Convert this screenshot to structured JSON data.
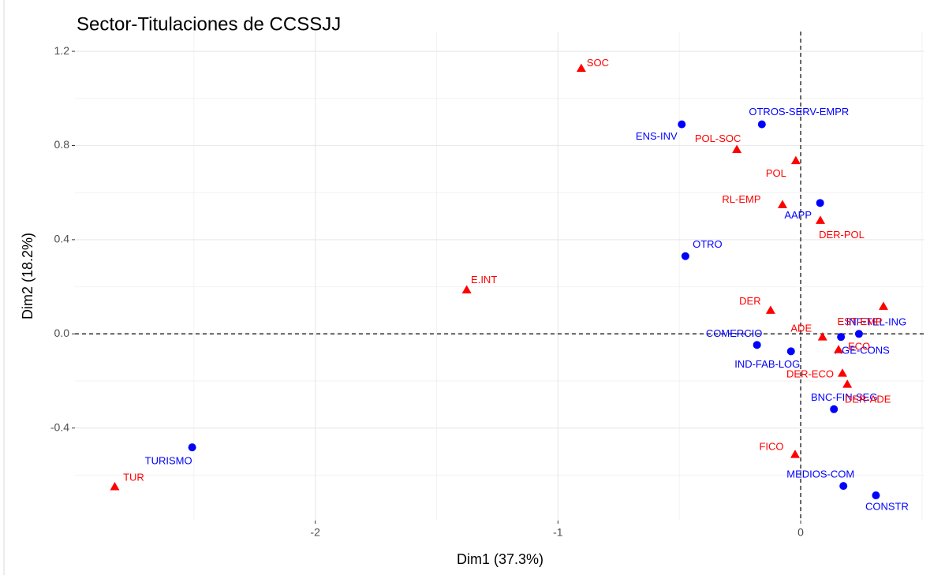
{
  "chart_data": {
    "type": "scatter",
    "title": "Sector-Titulaciones de CCSSJJ",
    "x_label": "Dim1 (37.3%)",
    "y_label": "Dim2 (18.2%)",
    "xlim": [
      -2.99,
      0.51
    ],
    "ylim": [
      -0.793,
      1.284
    ],
    "xticks": [
      -2,
      -1,
      0
    ],
    "yticks": [
      -0.4,
      {
        "value": 0,
        "label": "0.0"
      },
      0.4,
      0.8,
      1.2
    ],
    "grid": true,
    "series": [
      {
        "color": "#0000ff",
        "marker": "circle",
        "labels": [
          "ENS-INV",
          "OTROS-SERV-EMPR",
          "AAPP",
          "OTRO",
          "COMERCIO",
          "IND-FAB-LOG",
          "AGE-CONS",
          "INF-TEL-ING",
          "BNC-FIN-SEG",
          "MEDIOS-COM",
          "CONSTR",
          "TURISMO"
        ],
        "x": [
          -0.49,
          -0.16,
          0.08,
          -0.475,
          -0.18,
          -0.04,
          0.166,
          0.24,
          0.137,
          0.176,
          0.31,
          -2.507
        ],
        "values": [
          0.89,
          0.89,
          0.556,
          0.33,
          -0.047,
          -0.074,
          -0.013,
          0.0,
          -0.32,
          -0.646,
          -0.686,
          -0.482
        ]
      },
      {
        "color": "#ff0000",
        "marker": "triangle",
        "labels": [
          "SOC",
          "POL-SOC",
          "POL",
          "RL-EMP",
          "DER-POL",
          "E.INT",
          "DER",
          "EST-EMP",
          "ADE",
          "ECO",
          "DER-ECO",
          "DER-ADE",
          "FICO",
          "TUR"
        ],
        "x": [
          -0.904,
          -0.263,
          -0.02,
          -0.075,
          0.081,
          -1.376,
          -0.124,
          0.341,
          0.09,
          0.156,
          0.172,
          0.192,
          -0.023,
          -2.826
        ],
        "values": [
          1.128,
          0.783,
          0.736,
          0.549,
          0.482,
          0.187,
          0.1,
          0.117,
          -0.013,
          -0.067,
          -0.167,
          -0.214,
          -0.512,
          -0.649
        ]
      }
    ]
  }
}
